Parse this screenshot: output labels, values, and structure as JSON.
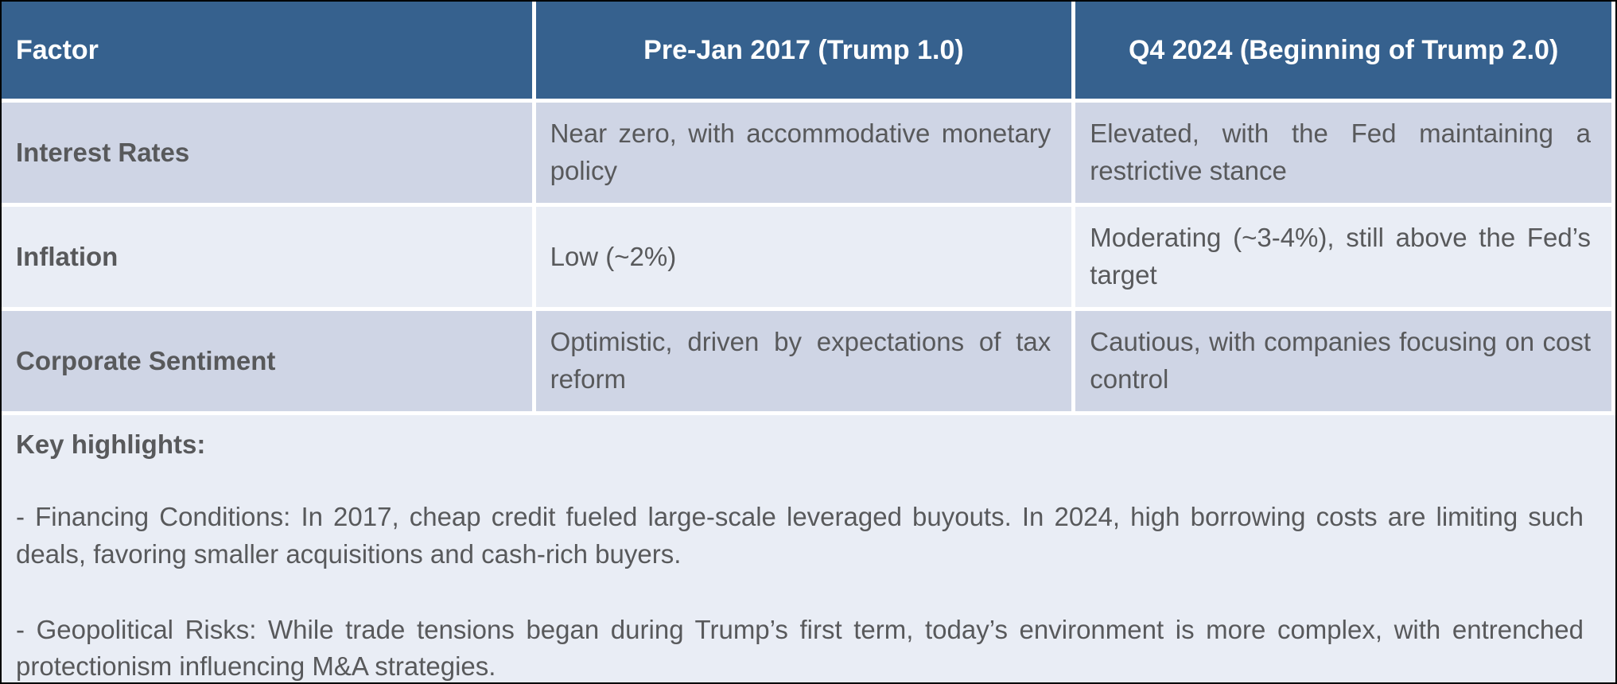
{
  "table": {
    "columns": [
      "Factor",
      "Pre-Jan 2017 (Trump 1.0)",
      "Q4 2024 (Beginning of Trump 2.0)"
    ],
    "rows": [
      {
        "factor": "Interest Rates",
        "trump1": "Near zero, with accommodative monetary policy",
        "trump2": "Elevated, with the Fed maintaining a restrictive stance"
      },
      {
        "factor": "Inflation",
        "trump1": "Low (~2%)",
        "trump2": "Moderating (~3-4%), still above the Fed’s target"
      },
      {
        "factor": "Corporate Sentiment",
        "trump1": "Optimistic, driven by expectations of tax reform",
        "trump2": "Cautious, with companies focusing on cost control"
      }
    ]
  },
  "highlights": {
    "title": "Key highlights:",
    "items": [
      "- Financing Conditions: In 2017, cheap credit fueled large-scale leveraged buyouts. In 2024, high borrowing costs are limiting such deals, favoring smaller acquisitions and cash-rich buyers.",
      "- Geopolitical Risks: While trade tensions began during Trump’s first term, today’s environment is more complex, with entrenched protectionism influencing M&A strategies."
    ]
  },
  "colors": {
    "header_bg": "#36618E",
    "header_text": "#FFFFFF",
    "row_odd_bg": "#CFD5E5",
    "row_even_bg": "#E9EDF5",
    "body_text": "#58595B",
    "cell_gap": "#FFFFFF",
    "frame_border": "#000000"
  }
}
